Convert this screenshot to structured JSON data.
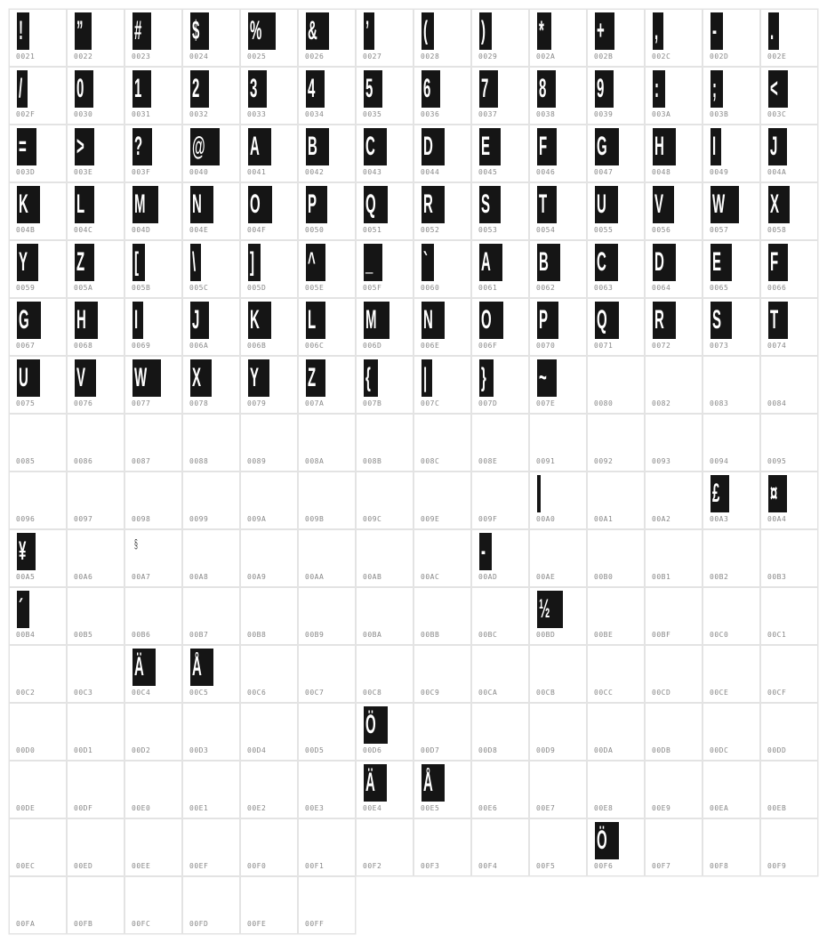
{
  "cells": [
    {
      "code": "0021",
      "glyph": "!"
    },
    {
      "code": "0022",
      "glyph": "”"
    },
    {
      "code": "0023",
      "glyph": "#"
    },
    {
      "code": "0024",
      "glyph": "$"
    },
    {
      "code": "0025",
      "glyph": "%"
    },
    {
      "code": "0026",
      "glyph": "&"
    },
    {
      "code": "0027",
      "glyph": "’"
    },
    {
      "code": "0028",
      "glyph": "("
    },
    {
      "code": "0029",
      "glyph": ")"
    },
    {
      "code": "002A",
      "glyph": "*"
    },
    {
      "code": "002B",
      "glyph": "+"
    },
    {
      "code": "002C",
      "glyph": ","
    },
    {
      "code": "002D",
      "glyph": "-"
    },
    {
      "code": "002E",
      "glyph": "."
    },
    {
      "code": "002F",
      "glyph": "/"
    },
    {
      "code": "0030",
      "glyph": "0"
    },
    {
      "code": "0031",
      "glyph": "1"
    },
    {
      "code": "0032",
      "glyph": "2"
    },
    {
      "code": "0033",
      "glyph": "3"
    },
    {
      "code": "0034",
      "glyph": "4"
    },
    {
      "code": "0035",
      "glyph": "5"
    },
    {
      "code": "0036",
      "glyph": "6"
    },
    {
      "code": "0037",
      "glyph": "7"
    },
    {
      "code": "0038",
      "glyph": "8"
    },
    {
      "code": "0039",
      "glyph": "9"
    },
    {
      "code": "003A",
      "glyph": ":"
    },
    {
      "code": "003B",
      "glyph": ";"
    },
    {
      "code": "003C",
      "glyph": "<"
    },
    {
      "code": "003D",
      "glyph": "="
    },
    {
      "code": "003E",
      "glyph": ">"
    },
    {
      "code": "003F",
      "glyph": "?"
    },
    {
      "code": "0040",
      "glyph": "@"
    },
    {
      "code": "0041",
      "glyph": "A"
    },
    {
      "code": "0042",
      "glyph": "B"
    },
    {
      "code": "0043",
      "glyph": "C"
    },
    {
      "code": "0044",
      "glyph": "D"
    },
    {
      "code": "0045",
      "glyph": "E"
    },
    {
      "code": "0046",
      "glyph": "F"
    },
    {
      "code": "0047",
      "glyph": "G"
    },
    {
      "code": "0048",
      "glyph": "H"
    },
    {
      "code": "0049",
      "glyph": "I"
    },
    {
      "code": "004A",
      "glyph": "J"
    },
    {
      "code": "004B",
      "glyph": "K"
    },
    {
      "code": "004C",
      "glyph": "L"
    },
    {
      "code": "004D",
      "glyph": "M"
    },
    {
      "code": "004E",
      "glyph": "N"
    },
    {
      "code": "004F",
      "glyph": "O"
    },
    {
      "code": "0050",
      "glyph": "P"
    },
    {
      "code": "0051",
      "glyph": "Q"
    },
    {
      "code": "0052",
      "glyph": "R"
    },
    {
      "code": "0053",
      "glyph": "S"
    },
    {
      "code": "0054",
      "glyph": "T"
    },
    {
      "code": "0055",
      "glyph": "U"
    },
    {
      "code": "0056",
      "glyph": "V"
    },
    {
      "code": "0057",
      "glyph": "W"
    },
    {
      "code": "0058",
      "glyph": "X"
    },
    {
      "code": "0059",
      "glyph": "Y"
    },
    {
      "code": "005A",
      "glyph": "Z"
    },
    {
      "code": "005B",
      "glyph": "["
    },
    {
      "code": "005C",
      "glyph": "\\"
    },
    {
      "code": "005D",
      "glyph": "]"
    },
    {
      "code": "005E",
      "glyph": "^"
    },
    {
      "code": "005F",
      "glyph": "_"
    },
    {
      "code": "0060",
      "glyph": "`"
    },
    {
      "code": "0061",
      "glyph": "A"
    },
    {
      "code": "0062",
      "glyph": "B"
    },
    {
      "code": "0063",
      "glyph": "C"
    },
    {
      "code": "0064",
      "glyph": "D"
    },
    {
      "code": "0065",
      "glyph": "E"
    },
    {
      "code": "0066",
      "glyph": "F"
    },
    {
      "code": "0067",
      "glyph": "G"
    },
    {
      "code": "0068",
      "glyph": "H"
    },
    {
      "code": "0069",
      "glyph": "I"
    },
    {
      "code": "006A",
      "glyph": "J"
    },
    {
      "code": "006B",
      "glyph": "K"
    },
    {
      "code": "006C",
      "glyph": "L"
    },
    {
      "code": "006D",
      "glyph": "M"
    },
    {
      "code": "006E",
      "glyph": "N"
    },
    {
      "code": "006F",
      "glyph": "O"
    },
    {
      "code": "0070",
      "glyph": "P"
    },
    {
      "code": "0071",
      "glyph": "Q"
    },
    {
      "code": "0072",
      "glyph": "R"
    },
    {
      "code": "0073",
      "glyph": "S"
    },
    {
      "code": "0074",
      "glyph": "T"
    },
    {
      "code": "0075",
      "glyph": "U"
    },
    {
      "code": "0076",
      "glyph": "V"
    },
    {
      "code": "0077",
      "glyph": "W"
    },
    {
      "code": "0078",
      "glyph": "X"
    },
    {
      "code": "0079",
      "glyph": "Y"
    },
    {
      "code": "007A",
      "glyph": "Z"
    },
    {
      "code": "007B",
      "glyph": "{"
    },
    {
      "code": "007C",
      "glyph": "|"
    },
    {
      "code": "007D",
      "glyph": "}"
    },
    {
      "code": "007E",
      "glyph": "~"
    },
    {
      "code": "0080",
      "glyph": ""
    },
    {
      "code": "0082",
      "glyph": ""
    },
    {
      "code": "0083",
      "glyph": ""
    },
    {
      "code": "0084",
      "glyph": ""
    },
    {
      "code": "0085",
      "glyph": ""
    },
    {
      "code": "0086",
      "glyph": ""
    },
    {
      "code": "0087",
      "glyph": ""
    },
    {
      "code": "0088",
      "glyph": ""
    },
    {
      "code": "0089",
      "glyph": ""
    },
    {
      "code": "008A",
      "glyph": ""
    },
    {
      "code": "008B",
      "glyph": ""
    },
    {
      "code": "008C",
      "glyph": ""
    },
    {
      "code": "008E",
      "glyph": ""
    },
    {
      "code": "0091",
      "glyph": ""
    },
    {
      "code": "0092",
      "glyph": ""
    },
    {
      "code": "0093",
      "glyph": ""
    },
    {
      "code": "0094",
      "glyph": ""
    },
    {
      "code": "0095",
      "glyph": ""
    },
    {
      "code": "0096",
      "glyph": ""
    },
    {
      "code": "0097",
      "glyph": ""
    },
    {
      "code": "0098",
      "glyph": ""
    },
    {
      "code": "0099",
      "glyph": ""
    },
    {
      "code": "009A",
      "glyph": ""
    },
    {
      "code": "009B",
      "glyph": ""
    },
    {
      "code": "009C",
      "glyph": ""
    },
    {
      "code": "009E",
      "glyph": ""
    },
    {
      "code": "009F",
      "glyph": ""
    },
    {
      "code": "00A0",
      "glyph": " "
    },
    {
      "code": "00A1",
      "glyph": ""
    },
    {
      "code": "00A2",
      "glyph": ""
    },
    {
      "code": "00A3",
      "glyph": "£"
    },
    {
      "code": "00A4",
      "glyph": "¤"
    },
    {
      "code": "00A5",
      "glyph": "¥"
    },
    {
      "code": "00A6",
      "glyph": ""
    },
    {
      "code": "00A7",
      "glyph": "§",
      "sketch": true
    },
    {
      "code": "00A8",
      "glyph": ""
    },
    {
      "code": "00A9",
      "glyph": ""
    },
    {
      "code": "00AA",
      "glyph": ""
    },
    {
      "code": "00AB",
      "glyph": ""
    },
    {
      "code": "00AC",
      "glyph": ""
    },
    {
      "code": "00AD",
      "glyph": "-"
    },
    {
      "code": "00AE",
      "glyph": ""
    },
    {
      "code": "00B0",
      "glyph": ""
    },
    {
      "code": "00B1",
      "glyph": ""
    },
    {
      "code": "00B2",
      "glyph": ""
    },
    {
      "code": "00B3",
      "glyph": ""
    },
    {
      "code": "00B4",
      "glyph": "´"
    },
    {
      "code": "00B5",
      "glyph": ""
    },
    {
      "code": "00B6",
      "glyph": ""
    },
    {
      "code": "00B7",
      "glyph": ""
    },
    {
      "code": "00B8",
      "glyph": ""
    },
    {
      "code": "00B9",
      "glyph": ""
    },
    {
      "code": "00BA",
      "glyph": ""
    },
    {
      "code": "00BB",
      "glyph": ""
    },
    {
      "code": "00BC",
      "glyph": ""
    },
    {
      "code": "00BD",
      "glyph": "½"
    },
    {
      "code": "00BE",
      "glyph": ""
    },
    {
      "code": "00BF",
      "glyph": ""
    },
    {
      "code": "00C0",
      "glyph": ""
    },
    {
      "code": "00C1",
      "glyph": ""
    },
    {
      "code": "00C2",
      "glyph": ""
    },
    {
      "code": "00C3",
      "glyph": ""
    },
    {
      "code": "00C4",
      "glyph": "Ä"
    },
    {
      "code": "00C5",
      "glyph": "Å"
    },
    {
      "code": "00C6",
      "glyph": ""
    },
    {
      "code": "00C7",
      "glyph": ""
    },
    {
      "code": "00C8",
      "glyph": ""
    },
    {
      "code": "00C9",
      "glyph": ""
    },
    {
      "code": "00CA",
      "glyph": ""
    },
    {
      "code": "00CB",
      "glyph": ""
    },
    {
      "code": "00CC",
      "glyph": ""
    },
    {
      "code": "00CD",
      "glyph": ""
    },
    {
      "code": "00CE",
      "glyph": ""
    },
    {
      "code": "00CF",
      "glyph": ""
    },
    {
      "code": "00D0",
      "glyph": ""
    },
    {
      "code": "00D1",
      "glyph": ""
    },
    {
      "code": "00D2",
      "glyph": ""
    },
    {
      "code": "00D3",
      "glyph": ""
    },
    {
      "code": "00D4",
      "glyph": ""
    },
    {
      "code": "00D5",
      "glyph": ""
    },
    {
      "code": "00D6",
      "glyph": "Ö"
    },
    {
      "code": "00D7",
      "glyph": ""
    },
    {
      "code": "00D8",
      "glyph": ""
    },
    {
      "code": "00D9",
      "glyph": ""
    },
    {
      "code": "00DA",
      "glyph": ""
    },
    {
      "code": "00DB",
      "glyph": ""
    },
    {
      "code": "00DC",
      "glyph": ""
    },
    {
      "code": "00DD",
      "glyph": ""
    },
    {
      "code": "00DE",
      "glyph": ""
    },
    {
      "code": "00DF",
      "glyph": ""
    },
    {
      "code": "00E0",
      "glyph": ""
    },
    {
      "code": "00E1",
      "glyph": ""
    },
    {
      "code": "00E2",
      "glyph": ""
    },
    {
      "code": "00E3",
      "glyph": ""
    },
    {
      "code": "00E4",
      "glyph": "Ä"
    },
    {
      "code": "00E5",
      "glyph": "Å"
    },
    {
      "code": "00E6",
      "glyph": ""
    },
    {
      "code": "00E7",
      "glyph": ""
    },
    {
      "code": "00E8",
      "glyph": ""
    },
    {
      "code": "00E9",
      "glyph": ""
    },
    {
      "code": "00EA",
      "glyph": ""
    },
    {
      "code": "00EB",
      "glyph": ""
    },
    {
      "code": "00EC",
      "glyph": ""
    },
    {
      "code": "00ED",
      "glyph": ""
    },
    {
      "code": "00EE",
      "glyph": ""
    },
    {
      "code": "00EF",
      "glyph": ""
    },
    {
      "code": "00F0",
      "glyph": ""
    },
    {
      "code": "00F1",
      "glyph": ""
    },
    {
      "code": "00F2",
      "glyph": ""
    },
    {
      "code": "00F3",
      "glyph": ""
    },
    {
      "code": "00F4",
      "glyph": ""
    },
    {
      "code": "00F5",
      "glyph": ""
    },
    {
      "code": "00F6",
      "glyph": "Ö"
    },
    {
      "code": "00F7",
      "glyph": ""
    },
    {
      "code": "00F8",
      "glyph": ""
    },
    {
      "code": "00F9",
      "glyph": ""
    },
    {
      "code": "00FA",
      "glyph": ""
    },
    {
      "code": "00FB",
      "glyph": ""
    },
    {
      "code": "00FC",
      "glyph": ""
    },
    {
      "code": "00FD",
      "glyph": ""
    },
    {
      "code": "00FE",
      "glyph": ""
    },
    {
      "code": "00FF",
      "glyph": ""
    }
  ]
}
